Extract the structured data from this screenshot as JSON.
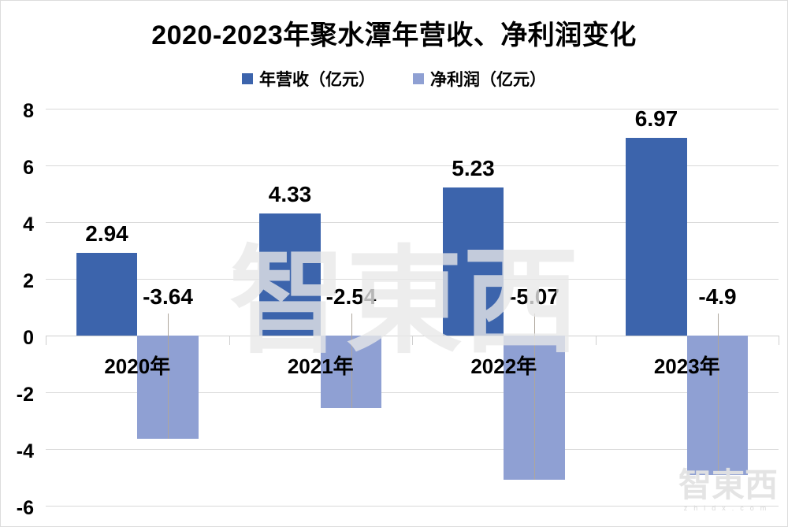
{
  "chart_data": {
    "type": "bar",
    "title": "2020-2023年聚水潭年营收、净利润变化",
    "categories": [
      "2020年",
      "2021年",
      "2022年",
      "2023年"
    ],
    "series": [
      {
        "key": "revenue",
        "name": "年营收（亿元）",
        "color": "#3C64AC",
        "values": [
          2.94,
          4.33,
          5.23,
          6.97
        ],
        "labels": [
          "2.94",
          "4.33",
          "5.23",
          "6.97"
        ]
      },
      {
        "key": "net_profit",
        "name": "净利润（亿元）",
        "color": "#8FA0D3",
        "values": [
          -3.64,
          -2.54,
          -5.07,
          -4.9
        ],
        "labels": [
          "-3.64",
          "-2.54",
          "-5.07",
          "-4.9"
        ]
      }
    ],
    "ylim": [
      -6,
      8
    ],
    "ytick_step": 2,
    "ytick_labels": [
      "8",
      "6",
      "4",
      "2",
      "0",
      "-2",
      "-4",
      "-6"
    ],
    "grid": true,
    "legend_position": "top-center",
    "colors": {
      "gridline": "#d9d9d9",
      "zero_line": "#cfcfcf",
      "leader_line": "#aea69c",
      "label_text": "#000000"
    }
  },
  "watermark": {
    "center_text": "智東西",
    "bottom_right_text": "智東西",
    "bottom_right_sub": "zhidx.com"
  }
}
